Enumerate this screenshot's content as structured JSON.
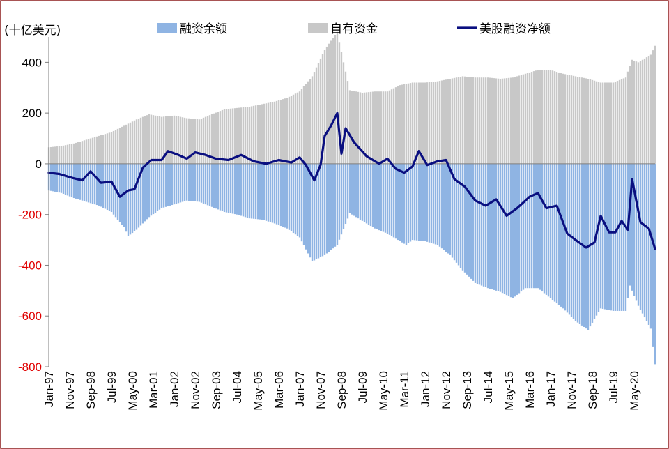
{
  "unit": "(十亿美元)",
  "colors": {
    "margin_debt": "#8FB4E3",
    "free_credit": "#C8C8C8",
    "net": "#0A0F80",
    "negative_tick": "#E00000",
    "border": "#8B1A1A"
  },
  "chart_data": {
    "type": "bar",
    "ylim": [
      -800,
      500
    ],
    "yticks": [
      -800,
      -600,
      -400,
      -200,
      0,
      200,
      400
    ],
    "grid": false,
    "legend_position": "top",
    "x_tick_labels": [
      "Jan-97",
      "Nov-97",
      "Sep-98",
      "Jul-99",
      "May-00",
      "Mar-01",
      "Jan-02",
      "Nov-02",
      "Sep-03",
      "Jul-04",
      "May-05",
      "Mar-06",
      "Jan-07",
      "Nov-07",
      "Sep-08",
      "Jul-09",
      "May-10",
      "Mar-11",
      "Jan-12",
      "Nov-12",
      "Sep-13",
      "Jul-14",
      "May-15",
      "Mar-16",
      "Jan-17",
      "Nov-17",
      "Sep-18",
      "Jul-19",
      "May-20"
    ],
    "series": [
      {
        "name": "融资余额",
        "type": "bar",
        "points": [
          [
            "1997-01",
            -105
          ],
          [
            "1997-07",
            -115
          ],
          [
            "1998-01",
            -135
          ],
          [
            "1998-07",
            -150
          ],
          [
            "1999-01",
            -165
          ],
          [
            "1999-07",
            -190
          ],
          [
            "2000-01",
            -250
          ],
          [
            "2000-03",
            -285
          ],
          [
            "2000-07",
            -260
          ],
          [
            "2001-01",
            -210
          ],
          [
            "2001-07",
            -175
          ],
          [
            "2002-01",
            -160
          ],
          [
            "2002-07",
            -145
          ],
          [
            "2003-01",
            -150
          ],
          [
            "2003-07",
            -170
          ],
          [
            "2004-01",
            -190
          ],
          [
            "2004-07",
            -200
          ],
          [
            "2005-01",
            -215
          ],
          [
            "2005-07",
            -220
          ],
          [
            "2006-01",
            -235
          ],
          [
            "2006-07",
            -255
          ],
          [
            "2007-01",
            -290
          ],
          [
            "2007-07",
            -385
          ],
          [
            "2008-01",
            -360
          ],
          [
            "2008-07",
            -320
          ],
          [
            "2009-01",
            -195
          ],
          [
            "2009-07",
            -225
          ],
          [
            "2010-01",
            -255
          ],
          [
            "2010-07",
            -275
          ],
          [
            "2011-01",
            -305
          ],
          [
            "2011-04",
            -320
          ],
          [
            "2011-07",
            -300
          ],
          [
            "2012-01",
            -305
          ],
          [
            "2012-07",
            -320
          ],
          [
            "2013-01",
            -360
          ],
          [
            "2013-07",
            -420
          ],
          [
            "2014-01",
            -470
          ],
          [
            "2014-07",
            -490
          ],
          [
            "2015-01",
            -505
          ],
          [
            "2015-07",
            -530
          ],
          [
            "2016-01",
            -490
          ],
          [
            "2016-07",
            -490
          ],
          [
            "2017-01",
            -530
          ],
          [
            "2017-07",
            -570
          ],
          [
            "2018-01",
            -620
          ],
          [
            "2018-07",
            -655
          ],
          [
            "2019-01",
            -570
          ],
          [
            "2019-07",
            -580
          ],
          [
            "2020-01",
            -580
          ],
          [
            "2020-03",
            -480
          ],
          [
            "2020-07",
            -560
          ],
          [
            "2021-01",
            -650
          ],
          [
            "2021-03",
            -790
          ]
        ]
      },
      {
        "name": "自有资金",
        "type": "bar",
        "points": [
          [
            "1997-01",
            65
          ],
          [
            "1997-07",
            70
          ],
          [
            "1998-01",
            80
          ],
          [
            "1998-07",
            95
          ],
          [
            "1999-01",
            110
          ],
          [
            "1999-07",
            125
          ],
          [
            "2000-01",
            150
          ],
          [
            "2000-07",
            175
          ],
          [
            "2001-01",
            195
          ],
          [
            "2001-07",
            185
          ],
          [
            "2002-01",
            190
          ],
          [
            "2002-07",
            180
          ],
          [
            "2003-01",
            175
          ],
          [
            "2003-07",
            195
          ],
          [
            "2004-01",
            215
          ],
          [
            "2004-07",
            220
          ],
          [
            "2005-01",
            225
          ],
          [
            "2005-07",
            235
          ],
          [
            "2006-01",
            245
          ],
          [
            "2006-07",
            260
          ],
          [
            "2007-01",
            285
          ],
          [
            "2007-07",
            345
          ],
          [
            "2008-01",
            450
          ],
          [
            "2008-07",
            520
          ],
          [
            "2008-10",
            400
          ],
          [
            "2009-01",
            290
          ],
          [
            "2009-07",
            280
          ],
          [
            "2010-01",
            285
          ],
          [
            "2010-07",
            285
          ],
          [
            "2011-01",
            310
          ],
          [
            "2011-07",
            320
          ],
          [
            "2012-01",
            320
          ],
          [
            "2012-07",
            325
          ],
          [
            "2013-01",
            335
          ],
          [
            "2013-07",
            345
          ],
          [
            "2014-01",
            340
          ],
          [
            "2014-07",
            340
          ],
          [
            "2015-01",
            335
          ],
          [
            "2015-07",
            340
          ],
          [
            "2016-01",
            355
          ],
          [
            "2016-07",
            370
          ],
          [
            "2017-01",
            370
          ],
          [
            "2017-07",
            355
          ],
          [
            "2018-01",
            345
          ],
          [
            "2018-07",
            335
          ],
          [
            "2019-01",
            320
          ],
          [
            "2019-07",
            320
          ],
          [
            "2020-01",
            340
          ],
          [
            "2020-04",
            410
          ],
          [
            "2020-07",
            400
          ],
          [
            "2021-01",
            430
          ],
          [
            "2021-03",
            465
          ]
        ]
      },
      {
        "name": "美股融资净额",
        "type": "line",
        "points": [
          [
            "1997-01",
            -35
          ],
          [
            "1997-06",
            -40
          ],
          [
            "1997-12",
            -55
          ],
          [
            "1998-05",
            -65
          ],
          [
            "1998-09",
            -30
          ],
          [
            "1999-02",
            -75
          ],
          [
            "1999-07",
            -70
          ],
          [
            "1999-11",
            -130
          ],
          [
            "2000-03",
            -105
          ],
          [
            "2000-06",
            -100
          ],
          [
            "2000-10",
            -15
          ],
          [
            "2001-02",
            15
          ],
          [
            "2001-07",
            15
          ],
          [
            "2001-10",
            50
          ],
          [
            "2002-03",
            35
          ],
          [
            "2002-07",
            20
          ],
          [
            "2002-11",
            45
          ],
          [
            "2003-04",
            35
          ],
          [
            "2003-09",
            20
          ],
          [
            "2004-03",
            15
          ],
          [
            "2004-09",
            35
          ],
          [
            "2005-03",
            10
          ],
          [
            "2005-09",
            0
          ],
          [
            "2006-03",
            15
          ],
          [
            "2006-09",
            5
          ],
          [
            "2007-01",
            25
          ],
          [
            "2007-04",
            -5
          ],
          [
            "2007-08",
            -65
          ],
          [
            "2007-11",
            -5
          ],
          [
            "2008-01",
            110
          ],
          [
            "2008-04",
            150
          ],
          [
            "2008-07",
            200
          ],
          [
            "2008-09",
            40
          ],
          [
            "2008-11",
            140
          ],
          [
            "2009-03",
            85
          ],
          [
            "2009-09",
            30
          ],
          [
            "2010-03",
            0
          ],
          [
            "2010-07",
            20
          ],
          [
            "2010-11",
            -20
          ],
          [
            "2011-03",
            -35
          ],
          [
            "2011-07",
            -10
          ],
          [
            "2011-10",
            50
          ],
          [
            "2012-02",
            -5
          ],
          [
            "2012-07",
            10
          ],
          [
            "2012-11",
            15
          ],
          [
            "2013-03",
            -60
          ],
          [
            "2013-08",
            -90
          ],
          [
            "2014-01",
            -145
          ],
          [
            "2014-06",
            -165
          ],
          [
            "2014-11",
            -140
          ],
          [
            "2015-04",
            -205
          ],
          [
            "2015-09",
            -175
          ],
          [
            "2016-03",
            -130
          ],
          [
            "2016-07",
            -115
          ],
          [
            "2016-11",
            -175
          ],
          [
            "2017-04",
            -165
          ],
          [
            "2017-09",
            -275
          ],
          [
            "2018-01",
            -300
          ],
          [
            "2018-06",
            -330
          ],
          [
            "2018-10",
            -310
          ],
          [
            "2019-01",
            -205
          ],
          [
            "2019-05",
            -270
          ],
          [
            "2019-08",
            -270
          ],
          [
            "2019-11",
            -225
          ],
          [
            "2020-02",
            -260
          ],
          [
            "2020-04",
            -60
          ],
          [
            "2020-08",
            -230
          ],
          [
            "2020-12",
            -255
          ],
          [
            "2021-03",
            -335
          ]
        ]
      }
    ]
  }
}
